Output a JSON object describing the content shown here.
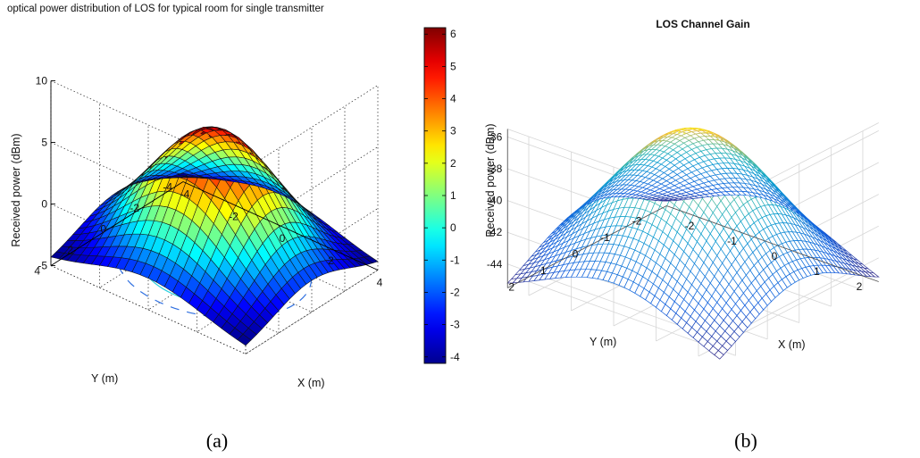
{
  "chart_data": [
    {
      "panel": "(a)",
      "type": "surface",
      "title": "optical power distribution of LOS for typical room for single transmitter",
      "xlabel": "X (m)",
      "ylabel": "Y (m)",
      "zlabel": "Received power (dBm)",
      "xlim": [
        -4,
        4
      ],
      "ylim": [
        -4,
        4
      ],
      "zlim": [
        -5,
        10
      ],
      "xticks": [
        "-4",
        "-2",
        "0",
        "2",
        "4"
      ],
      "yticks": [
        "-4",
        "-2",
        "0",
        "2",
        "4"
      ],
      "zticks": [
        "-5",
        "0",
        "5",
        "10"
      ],
      "peak": {
        "x": 0,
        "y": 0,
        "z": 6.1
      },
      "corner_z": -4.3,
      "colormap": "jet",
      "colorbar": {
        "min": -4.2,
        "max": 6.2,
        "ticks": [
          "6",
          "5",
          "4",
          "3",
          "2",
          "1",
          "0",
          "-1",
          "-2",
          "-3",
          "-4"
        ]
      },
      "contour_projection": true,
      "grid": true
    },
    {
      "panel": "(b)",
      "type": "mesh",
      "title": "LOS Channel Gain",
      "xlabel": "X (m)",
      "ylabel": "Y (m)",
      "zlabel": "Received power (dBm)",
      "xlim": [
        -2.5,
        2.5
      ],
      "ylim": [
        -2.5,
        2.5
      ],
      "zlim": [
        -45.5,
        -35.5
      ],
      "xticks": [
        "-2",
        "-1",
        "0",
        "1",
        "2"
      ],
      "yticks": [
        "-2",
        "-1",
        "0",
        "1",
        "2"
      ],
      "zticks": [
        "-36",
        "-38",
        "-40",
        "-42",
        "-44"
      ],
      "peak": {
        "x": 0,
        "y": 0,
        "z": -35.9
      },
      "corner_z": -45.2,
      "colormap": "parula",
      "grid": true
    }
  ],
  "captions": {
    "a": "(a)",
    "b": "(b)"
  }
}
